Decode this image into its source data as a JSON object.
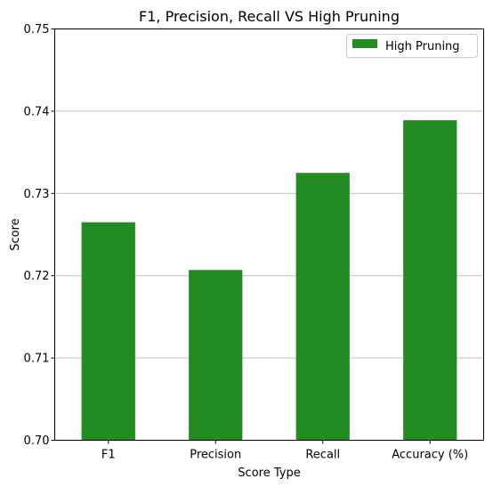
{
  "chart_data": {
    "type": "bar",
    "title": "F1, Precision, Recall VS High Pruning",
    "xlabel": "Score Type",
    "ylabel": "Score",
    "categories": [
      "F1",
      "Precision",
      "Recall",
      "Accuracy (%)"
    ],
    "series": [
      {
        "name": "High Pruning",
        "values": [
          0.7265,
          0.7207,
          0.7325,
          0.7389
        ],
        "color": "#228b22"
      }
    ],
    "ylim": [
      0.7,
      0.75
    ],
    "yticks": [
      "0.70",
      "0.71",
      "0.72",
      "0.73",
      "0.74",
      "0.75"
    ],
    "grid": "horizontal",
    "grid_color": "#c0c0c0",
    "legend_position": "top-right"
  }
}
